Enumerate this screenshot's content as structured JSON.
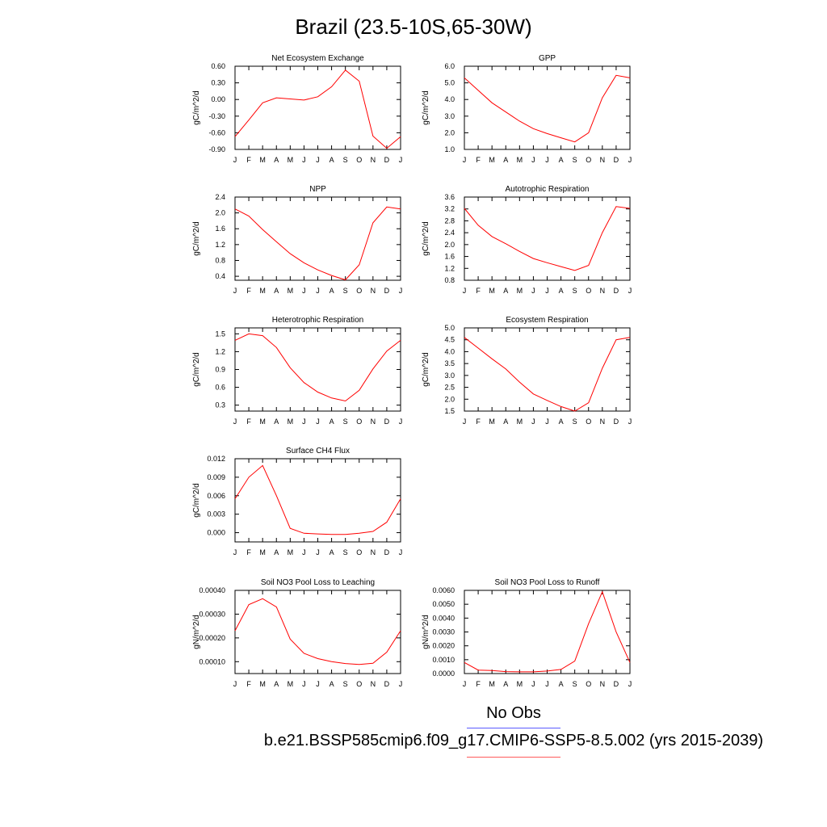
{
  "figure": {
    "title": "Brazil (23.5-10S,65-30W)",
    "legend": {
      "obs_label": "No Obs",
      "obs_color": "#5b5bff",
      "case_label": "b.e21.BSSP585cmip6.f09_g17.CMIP6-SSP5-8.5.002 (yrs 2015-2039)",
      "case_color": "#ff5b5b"
    },
    "series_color": "#ff0000"
  },
  "chart_data": [
    {
      "type": "line",
      "title": "Net Ecosystem Exchange",
      "ylabel": "gC/m^2/d",
      "categories": [
        "J",
        "F",
        "M",
        "A",
        "M",
        "J",
        "J",
        "A",
        "S",
        "O",
        "N",
        "D",
        "J"
      ],
      "ylim": [
        -0.9,
        0.6
      ],
      "yticks": [
        "0.60",
        "0.30",
        "0.00",
        "-0.30",
        "-0.60",
        "-0.90"
      ],
      "values": [
        -0.67,
        -0.37,
        -0.06,
        0.03,
        0.01,
        -0.01,
        0.05,
        0.23,
        0.53,
        0.33,
        -0.66,
        -0.88,
        -0.67
      ]
    },
    {
      "type": "line",
      "title": "GPP",
      "ylabel": "gC/m^2/d",
      "categories": [
        "J",
        "F",
        "M",
        "A",
        "M",
        "J",
        "J",
        "A",
        "S",
        "O",
        "N",
        "D",
        "J"
      ],
      "ylim": [
        1.0,
        6.0
      ],
      "yticks": [
        "6.0",
        "5.0",
        "4.0",
        "3.0",
        "2.0",
        "1.0"
      ],
      "values": [
        5.3,
        4.55,
        3.8,
        3.25,
        2.7,
        2.25,
        1.95,
        1.7,
        1.45,
        2.0,
        4.1,
        5.45,
        5.3
      ]
    },
    {
      "type": "line",
      "title": "NPP",
      "ylabel": "gC/m^2/d",
      "categories": [
        "J",
        "F",
        "M",
        "A",
        "M",
        "J",
        "J",
        "A",
        "S",
        "O",
        "N",
        "D",
        "J"
      ],
      "ylim": [
        0.3,
        2.4
      ],
      "yticks": [
        "2.4",
        "2.0",
        "1.6",
        "1.2",
        "0.8",
        "0.4"
      ],
      "values": [
        2.1,
        1.92,
        1.58,
        1.27,
        0.97,
        0.74,
        0.56,
        0.42,
        0.31,
        0.69,
        1.75,
        2.15,
        2.1
      ]
    },
    {
      "type": "line",
      "title": "Autotrophic Respiration",
      "ylabel": "gC/m^2/d",
      "categories": [
        "J",
        "F",
        "M",
        "A",
        "M",
        "J",
        "J",
        "A",
        "S",
        "O",
        "N",
        "D",
        "J"
      ],
      "ylim": [
        0.8,
        3.6
      ],
      "yticks": [
        "3.6",
        "3.2",
        "2.8",
        "2.4",
        "2.0",
        "1.6",
        "1.2",
        "0.8"
      ],
      "values": [
        3.22,
        2.65,
        2.27,
        2.03,
        1.77,
        1.53,
        1.39,
        1.26,
        1.13,
        1.3,
        2.4,
        3.28,
        3.22
      ]
    },
    {
      "type": "line",
      "title": "Heterotrophic Respiration",
      "ylabel": "gC/m^2/d",
      "categories": [
        "J",
        "F",
        "M",
        "A",
        "M",
        "J",
        "J",
        "A",
        "S",
        "O",
        "N",
        "D",
        "J"
      ],
      "ylim": [
        0.2,
        1.6
      ],
      "yticks": [
        "1.5",
        "1.2",
        "0.9",
        "0.6",
        "0.3"
      ],
      "values": [
        1.39,
        1.5,
        1.47,
        1.27,
        0.93,
        0.68,
        0.52,
        0.42,
        0.37,
        0.55,
        0.91,
        1.21,
        1.39
      ]
    },
    {
      "type": "line",
      "title": "Ecosystem Respiration",
      "ylabel": "gC/m^2/d",
      "categories": [
        "J",
        "F",
        "M",
        "A",
        "M",
        "J",
        "J",
        "A",
        "S",
        "O",
        "N",
        "D",
        "J"
      ],
      "ylim": [
        1.5,
        5.0
      ],
      "yticks": [
        "5.0",
        "4.5",
        "4.0",
        "3.5",
        "3.0",
        "2.5",
        "2.0",
        "1.5"
      ],
      "values": [
        4.6,
        4.15,
        3.7,
        3.27,
        2.72,
        2.22,
        1.95,
        1.69,
        1.5,
        1.85,
        3.3,
        4.5,
        4.6
      ]
    },
    {
      "type": "line",
      "title": "Surface CH4 Flux",
      "ylabel": "gC/m^2/d",
      "categories": [
        "J",
        "F",
        "M",
        "A",
        "M",
        "J",
        "J",
        "A",
        "S",
        "O",
        "N",
        "D",
        "J"
      ],
      "ylim": [
        -0.0015,
        0.012
      ],
      "yticks": [
        "0.012",
        "0.009",
        "0.006",
        "0.003",
        "0.000"
      ],
      "values": [
        0.0055,
        0.009,
        0.0109,
        0.006,
        0.0007,
        -0.0001,
        -0.0002,
        -0.0003,
        -0.0003,
        -0.0001,
        0.0002,
        0.0017,
        0.0055
      ]
    },
    {
      "type": "line",
      "title": "Soil NO3 Pool Loss to Leaching",
      "ylabel": "gN/m^2/d",
      "categories": [
        "J",
        "F",
        "M",
        "A",
        "M",
        "J",
        "J",
        "A",
        "S",
        "O",
        "N",
        "D",
        "J"
      ],
      "ylim": [
        5e-05,
        0.0004
      ],
      "yticks": [
        "0.00040",
        "0.00030",
        "0.00020",
        "0.00010"
      ],
      "values": [
        0.00023,
        0.00034,
        0.000365,
        0.00033,
        0.000195,
        0.000135,
        0.000113,
        0.0001,
        9.2e-05,
        8.8e-05,
        9.3e-05,
        0.00014,
        0.00023
      ]
    },
    {
      "type": "line",
      "title": "Soil NO3 Pool Loss to Runoff",
      "ylabel": "gN/m^2/d",
      "categories": [
        "J",
        "F",
        "M",
        "A",
        "M",
        "J",
        "J",
        "A",
        "S",
        "O",
        "N",
        "D",
        "J"
      ],
      "ylim": [
        0.0,
        0.006
      ],
      "yticks": [
        "0.0060",
        "0.0050",
        "0.0040",
        "0.0030",
        "0.0020",
        "0.0010",
        "0.0000"
      ],
      "values": [
        0.0008,
        0.00025,
        0.00022,
        0.00014,
        0.00012,
        0.00012,
        0.00018,
        0.0003,
        0.0009,
        0.0036,
        0.0059,
        0.003,
        0.0008
      ]
    }
  ]
}
